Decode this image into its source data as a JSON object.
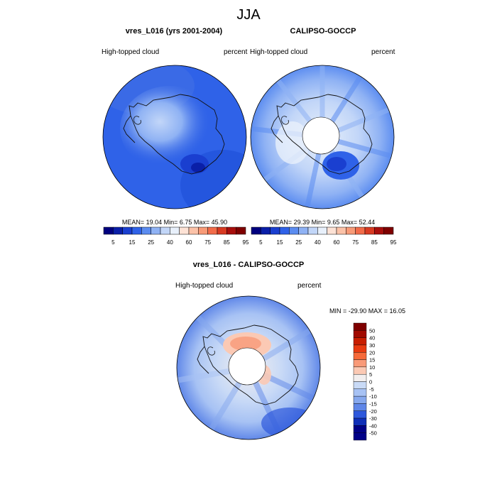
{
  "main_title": "JJA",
  "panels": [
    {
      "title": "vres_L016 (yrs 2001-2004)",
      "left_label": "High-topped cloud",
      "right_label": "percent",
      "stats": "MEAN=  19.04  Min=   6.75  Max=  45.90",
      "colorbar_ticks": [
        "5",
        "15",
        "25",
        "40",
        "60",
        "75",
        "85",
        "95"
      ]
    },
    {
      "title": "CALIPSO-GOCCP",
      "left_label": "High-topped cloud",
      "right_label": "percent",
      "stats": "MEAN=  29.39  Min=   9.65  Max=  52.44",
      "colorbar_ticks": [
        "5",
        "15",
        "25",
        "40",
        "60",
        "75",
        "85",
        "95"
      ]
    }
  ],
  "diff_panel": {
    "title": "vres_L016 - CALIPSO-GOCCP",
    "left_label": "High-topped cloud",
    "right_label": "percent",
    "minmax": "MIN = -29.90 MAX =  16.05",
    "colorbar_ticks": [
      "50",
      "40",
      "30",
      "20",
      "15",
      "10",
      "5",
      "0",
      "-5",
      "-10",
      "-15",
      "-20",
      "-30",
      "-40",
      "-50"
    ]
  },
  "colors": {
    "field_colorbar": [
      "#00007f",
      "#0a1fa8",
      "#1a3fd0",
      "#2f62e8",
      "#5b8cf0",
      "#8fb2f4",
      "#c2d6f8",
      "#e8f0fb",
      "#fde2d5",
      "#fbc2a8",
      "#f89b78",
      "#f26c4a",
      "#d83a22",
      "#a80e0c",
      "#7f0000"
    ],
    "diff_colorbar": [
      "#7f0000",
      "#a10a00",
      "#c81e00",
      "#e83a10",
      "#f66a3a",
      "#f99a78",
      "#fbc9b4",
      "#f2eeee",
      "#c9daf6",
      "#a7c2f4",
      "#86a8ee",
      "#5e86e8",
      "#2e58dc",
      "#0f2fb8",
      "#000088"
    ]
  }
}
